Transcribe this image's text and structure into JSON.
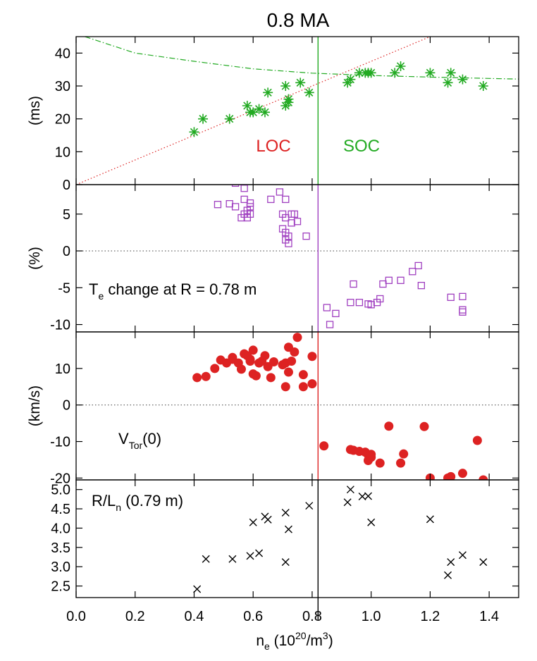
{
  "figure": {
    "title": "0.8 MA",
    "xlabel_main": "n",
    "xlabel_sub": "e",
    "xlabel_tail": " (10",
    "xlabel_sup": "20",
    "xlabel_end": "/m",
    "xlabel_sup2": "3",
    "xlabel_close": ")"
  },
  "colors": {
    "green": "#22aa22",
    "red": "#dd2222",
    "purple": "#a040c0",
    "black": "#000000"
  },
  "chart_data": [
    {
      "type": "scatter",
      "panel": "top",
      "ylabel": "(ms)",
      "ylim": [
        0,
        45
      ],
      "xlim": [
        0,
        1.5
      ],
      "yticks": [
        "0",
        "10",
        "20",
        "30",
        "40"
      ],
      "yticks_values": [
        0,
        10,
        20,
        30,
        40
      ],
      "marker": "asterisk",
      "marker_color": "green",
      "vertical_line_x": 0.82,
      "vertical_line_color": "green",
      "annotations": [
        {
          "text": "LOC",
          "color": "red"
        },
        {
          "text": "SOC",
          "color": "green"
        }
      ],
      "fit_lines": [
        {
          "name": "",
          "style": "dotted",
          "color": "red",
          "kind": "linear",
          "x": [
            0.0,
            1.2
          ],
          "y": [
            0.0,
            45.0
          ]
        },
        {
          "name": "",
          "style": "dash-dot",
          "color": "green",
          "kind": "saturating",
          "x": [
            0.03,
            0.2,
            0.4,
            0.6,
            0.8,
            1.0,
            1.2,
            1.4,
            1.5
          ],
          "y": [
            45.0,
            40.0,
            37.5,
            35.2,
            33.9,
            33.2,
            32.7,
            32.3,
            32.1
          ]
        }
      ],
      "points": {
        "x": [
          0.4,
          0.43,
          0.52,
          0.58,
          0.59,
          0.6,
          0.62,
          0.64,
          0.65,
          0.71,
          0.71,
          0.72,
          0.72,
          0.76,
          0.79,
          0.92,
          0.93,
          0.96,
          0.98,
          0.99,
          1.0,
          1.08,
          1.1,
          1.2,
          1.26,
          1.27,
          1.31,
          1.38
        ],
        "y": [
          16,
          20,
          20,
          24,
          22,
          22,
          23,
          22,
          28,
          30,
          24,
          25,
          26,
          31,
          28,
          31,
          32,
          34,
          34,
          34,
          34,
          34,
          36,
          34,
          31,
          34,
          32,
          30
        ]
      }
    },
    {
      "type": "scatter",
      "panel": "second",
      "ylabel": "(%)",
      "ylim": [
        -11,
        9
      ],
      "xlim": [
        0,
        1.5
      ],
      "yticks": [
        "-10",
        "-5",
        "0",
        "5"
      ],
      "yticks_values": [
        -10,
        -5,
        0,
        5
      ],
      "marker": "open-square",
      "marker_color": "purple",
      "vertical_line_x": 0.82,
      "vertical_line_color": "purple",
      "zero_line": "dotted",
      "annotation_main": "T",
      "annotation_sub": "e",
      "annotation_tail": " change at R = 0.78 m",
      "points": {
        "x": [
          0.48,
          0.52,
          0.54,
          0.54,
          0.56,
          0.57,
          0.57,
          0.57,
          0.58,
          0.58,
          0.59,
          0.59,
          0.59,
          0.66,
          0.69,
          0.7,
          0.7,
          0.71,
          0.71,
          0.71,
          0.71,
          0.72,
          0.72,
          0.73,
          0.73,
          0.74,
          0.75,
          0.78,
          0.85,
          0.86,
          0.88,
          0.93,
          0.94,
          0.96,
          0.99,
          1.0,
          1.02,
          1.03,
          1.04,
          1.06,
          1.1,
          1.14,
          1.16,
          1.17,
          1.27,
          1.31,
          1.31,
          1.31
        ],
        "y": [
          6.3,
          6.4,
          6.0,
          9.2,
          4.5,
          8.5,
          7.0,
          5.0,
          4.5,
          5.5,
          6.5,
          5.0,
          6.0,
          7.0,
          8.0,
          5.0,
          3.0,
          7.0,
          4.5,
          2.5,
          1.5,
          2.0,
          1.0,
          5.0,
          3.8,
          5.0,
          4.0,
          2.0,
          -7.7,
          -10.0,
          -8.5,
          -7.0,
          -4.5,
          -7.0,
          -7.2,
          -7.3,
          -7.0,
          -6.5,
          -4.5,
          -4.0,
          -4.0,
          -2.8,
          -2.0,
          -4.7,
          -6.3,
          -6.2,
          -8.0,
          -8.3
        ]
      }
    },
    {
      "type": "scatter",
      "panel": "third",
      "ylabel": "(km/s)",
      "ylim": [
        -20.5,
        20
      ],
      "xlim": [
        0,
        1.5
      ],
      "yticks": [
        "-20",
        "-10",
        "0",
        "10"
      ],
      "yticks_values": [
        -20,
        -10,
        0,
        10
      ],
      "marker": "filled-circle",
      "marker_color": "red",
      "vertical_line_x": 0.82,
      "vertical_line_color": "red",
      "zero_line": "dotted",
      "annotation_main": "V",
      "annotation_sub": "Tor",
      "annotation_tail": "(0)",
      "points": {
        "x": [
          0.41,
          0.44,
          0.47,
          0.49,
          0.51,
          0.53,
          0.53,
          0.55,
          0.56,
          0.57,
          0.58,
          0.59,
          0.59,
          0.6,
          0.6,
          0.61,
          0.62,
          0.63,
          0.64,
          0.65,
          0.66,
          0.67,
          0.7,
          0.71,
          0.71,
          0.72,
          0.72,
          0.73,
          0.74,
          0.75,
          0.77,
          0.77,
          0.8,
          0.8,
          0.84,
          0.93,
          0.94,
          0.96,
          0.98,
          0.99,
          0.99,
          1.0,
          1.0,
          1.03,
          1.06,
          1.1,
          1.11,
          1.18,
          1.2,
          1.26,
          1.27,
          1.31,
          1.36,
          1.38
        ],
        "y": [
          7.5,
          7.8,
          10.0,
          12.3,
          11.5,
          13.0,
          12.5,
          11.5,
          9.8,
          14.0,
          13.5,
          12.0,
          12.5,
          8.5,
          15.0,
          8.0,
          11.5,
          12.0,
          13.5,
          10.5,
          7.5,
          11.8,
          11.0,
          5.0,
          11.5,
          9.0,
          15.8,
          12.0,
          14.5,
          18.5,
          8.3,
          5.0,
          13.3,
          5.8,
          -11.2,
          -12.2,
          -12.4,
          -12.7,
          -12.9,
          -13.6,
          -15.2,
          -14.3,
          -13.5,
          -15.9,
          -5.8,
          -15.9,
          -13.4,
          -5.9,
          -20.0,
          -20.0,
          -19.6,
          -18.7,
          -9.7,
          -20.5
        ]
      }
    },
    {
      "type": "scatter",
      "panel": "bottom",
      "ylim": [
        2.2,
        5.25
      ],
      "xlim": [
        0,
        1.5
      ],
      "yticks": [
        "2.5",
        "3.0",
        "3.5",
        "4.0",
        "4.5",
        "5.0"
      ],
      "yticks_values": [
        2.5,
        3.0,
        3.5,
        4.0,
        4.5,
        5.0
      ],
      "xticks": [
        "0.0",
        "0.2",
        "0.4",
        "0.6",
        "0.8",
        "1.0",
        "1.2",
        "1.4"
      ],
      "xticks_values": [
        0.0,
        0.2,
        0.4,
        0.6,
        0.8,
        1.0,
        1.2,
        1.4
      ],
      "marker": "x",
      "marker_color": "black",
      "vertical_line_x": 0.82,
      "vertical_line_color": "black",
      "annotation_main": "R/L",
      "annotation_sub": "n",
      "annotation_tail": " (0.79 m)",
      "points": {
        "x": [
          0.41,
          0.44,
          0.53,
          0.59,
          0.6,
          0.62,
          0.64,
          0.65,
          0.71,
          0.71,
          0.72,
          0.79,
          0.92,
          0.93,
          0.97,
          0.99,
          1.0,
          1.2,
          1.26,
          1.27,
          1.31,
          1.38
        ],
        "y": [
          2.42,
          3.2,
          3.2,
          3.28,
          4.15,
          3.35,
          4.3,
          4.22,
          4.4,
          3.12,
          3.97,
          4.58,
          4.67,
          5.0,
          4.82,
          4.83,
          4.15,
          4.23,
          2.78,
          3.12,
          3.3,
          3.12
        ]
      }
    }
  ]
}
